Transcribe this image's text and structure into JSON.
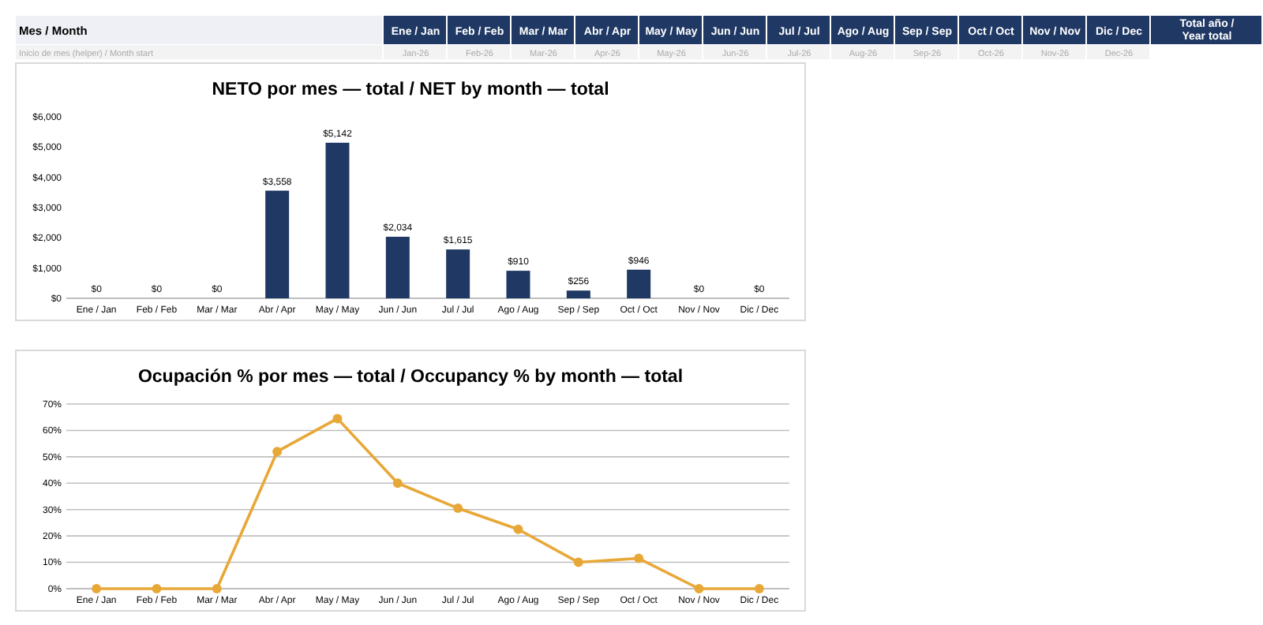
{
  "chart_data": [
    {
      "type": "other",
      "categories": [
        "Mes / Month",
        "Ene / Jan",
        "Feb / Feb",
        "Mar / Mar",
        "Abr / Apr",
        "May / May",
        "Jun / Jun",
        "Jul / Jul",
        "Ago / Aug",
        "Sep / Sep",
        "Oct / Oct",
        "Nov / Nov",
        "Dic / Dec",
        "Total año / Year total"
      ],
      "annotations": [
        "Inicio de mes (helper) / Month start",
        "Jan-26",
        "Feb-26",
        "Mar-26",
        "Apr-26",
        "May-26",
        "Jun-26",
        "Jul-26",
        "Aug-26",
        "Sep-26",
        "Oct-26",
        "Nov-26",
        "Dec-26"
      ],
      "color": "#1f3864"
    },
    {
      "type": "bar",
      "title": "NETO por mes — total / NET by month — total",
      "categories": [
        "Ene / Jan",
        "Feb / Feb",
        "Mar / Mar",
        "Abr / Apr",
        "May / May",
        "Jun / Jun",
        "Jul / Jul",
        "Ago / Aug",
        "Sep / Sep",
        "Oct / Oct",
        "Nov / Nov",
        "Dic / Dec"
      ],
      "values": [
        0,
        0,
        0,
        3558,
        5142,
        2034,
        1615,
        910,
        256,
        946,
        0,
        0
      ],
      "value_labels": [
        "$0",
        "$0",
        "$0",
        "$3,558",
        "$5,142",
        "$2,034",
        "$1,615",
        "$910",
        "$256",
        "$946",
        "$0",
        "$0"
      ],
      "color": "#1f3864",
      "ylim": [
        0,
        6000
      ],
      "yticks": [
        {
          "value": 0,
          "label": "$0"
        },
        {
          "value": 1000,
          "label": "$1,000"
        },
        {
          "value": 2000,
          "label": "$2,000"
        },
        {
          "value": 3000,
          "label": "$3,000"
        },
        {
          "value": 4000,
          "label": "$4,000"
        },
        {
          "value": 5000,
          "label": "$5,000"
        },
        {
          "value": 6000,
          "label": "$6,000"
        }
      ],
      "grid": false
    },
    {
      "type": "line",
      "title": "Ocupación % por mes — total / Occupancy % by month — total",
      "categories": [
        "Ene / Jan",
        "Feb / Feb",
        "Mar / Mar",
        "Abr / Apr",
        "May / May",
        "Jun / Jun",
        "Jul / Jul",
        "Ago / Aug",
        "Sep / Sep",
        "Oct / Oct",
        "Nov / Nov",
        "Dic / Dec"
      ],
      "values": [
        0,
        0,
        0,
        52,
        64.5,
        40,
        30.5,
        22.5,
        10,
        11.5,
        0,
        0
      ],
      "color": "#e8a838",
      "marker": "circle",
      "line_style": "solid",
      "ylim": [
        0,
        70
      ],
      "yticks": [
        {
          "value": 0,
          "label": "0%"
        },
        {
          "value": 10,
          "label": "10%"
        },
        {
          "value": 20,
          "label": "20%"
        },
        {
          "value": 30,
          "label": "30%"
        },
        {
          "value": 40,
          "label": "40%"
        },
        {
          "value": 50,
          "label": "50%"
        },
        {
          "value": 60,
          "label": "60%"
        },
        {
          "value": 70,
          "label": "70%"
        }
      ],
      "grid": "y"
    }
  ]
}
